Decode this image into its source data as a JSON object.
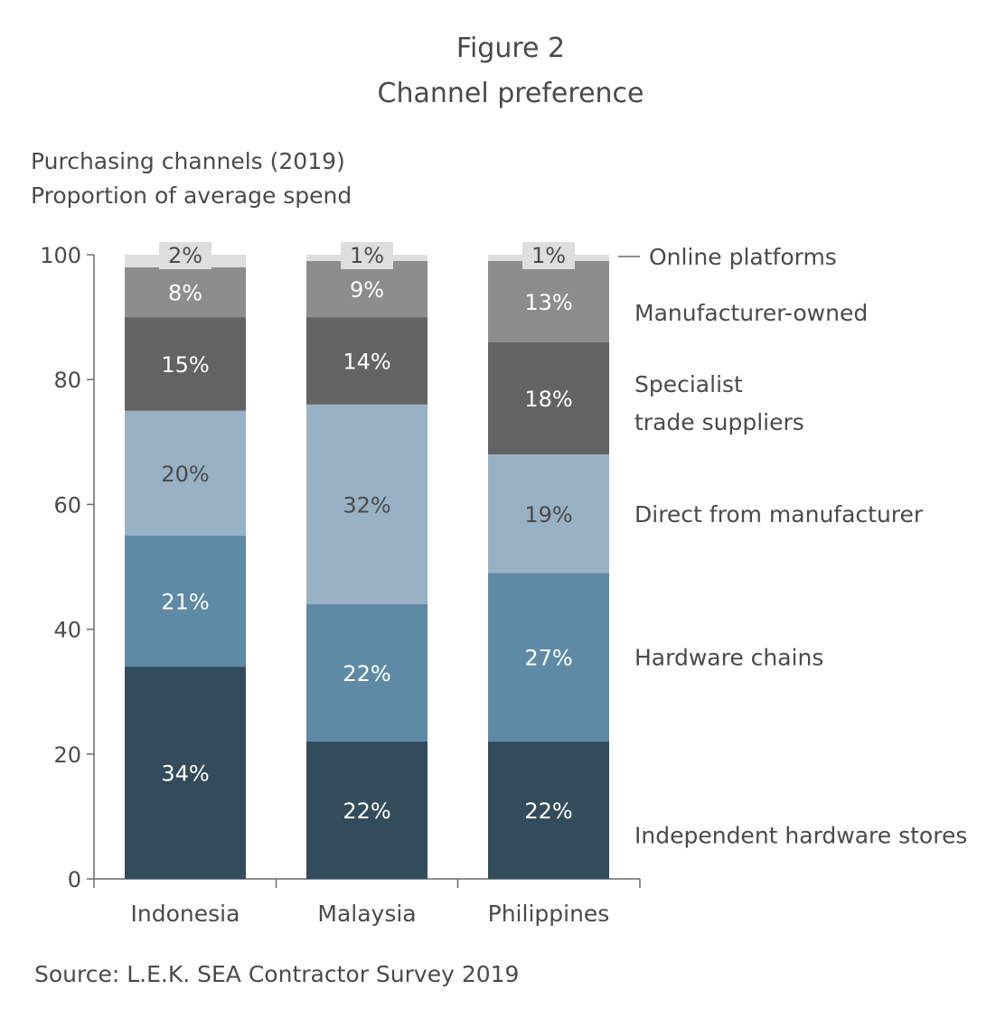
{
  "figure": {
    "label": "Figure 2",
    "title": "Channel preference"
  },
  "chart_data": {
    "type": "bar",
    "stacked": true,
    "title": "Purchasing channels (2019)",
    "subtitle": "Proportion of average spend",
    "categories": [
      "Indonesia",
      "Malaysia",
      "Philippines"
    ],
    "ylim": [
      0,
      100
    ],
    "yticks": [
      "0",
      "20",
      "40",
      "60",
      "80",
      "100"
    ],
    "series": [
      {
        "name": "Independent hardware stores",
        "values": [
          34,
          22,
          22
        ],
        "labels": [
          "34%",
          "22%",
          "22%"
        ],
        "color": "#334c5c",
        "text_color": "#ffffff"
      },
      {
        "name": "Hardware chains",
        "values": [
          21,
          22,
          27
        ],
        "labels": [
          "21%",
          "22%",
          "27%"
        ],
        "color": "#5e8aa6",
        "text_color": "#ffffff"
      },
      {
        "name": "Direct from manufacturer",
        "values": [
          20,
          32,
          19
        ],
        "labels": [
          "20%",
          "32%",
          "19%"
        ],
        "color": "#98b1c4",
        "text_color": "#4a4a4a"
      },
      {
        "name": "Specialist trade suppliers",
        "values": [
          15,
          14,
          18
        ],
        "labels": [
          "15%",
          "14%",
          "18%"
        ],
        "color": "#636363",
        "text_color": "#ffffff"
      },
      {
        "name": "Manufacturer-owned",
        "values": [
          8,
          9,
          13
        ],
        "labels": [
          "8%",
          "9%",
          "13%"
        ],
        "color": "#8d8d8d",
        "text_color": "#ffffff"
      },
      {
        "name": "Online platforms",
        "values": [
          2,
          1,
          1
        ],
        "labels": [
          "2%",
          "1%",
          "1%"
        ],
        "color": "#dedede",
        "text_color": "#4a4a4a"
      }
    ],
    "legend_position": "right",
    "grid": false
  },
  "source": "Source:  L.E.K. SEA Contractor Survey 2019"
}
